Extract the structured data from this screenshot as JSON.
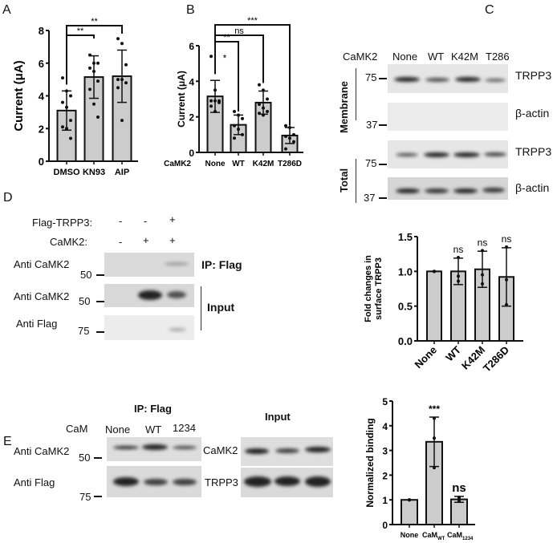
{
  "panels": {
    "a": "A",
    "b": "B",
    "c": "C",
    "d": "D",
    "e": "E"
  },
  "colors": {
    "bar_fill": "#cccccc",
    "bar_edge": "#111111"
  },
  "panel_c_blot": {
    "row_label": "CaMK2",
    "lanes": [
      "None",
      "WT",
      "K42M",
      "T286"
    ],
    "rows": [
      "TRPP3",
      "β-actin",
      "TRPP3",
      "β-actin"
    ],
    "markers": [
      "75",
      "37",
      "75",
      "37"
    ],
    "groups": [
      "Membrane",
      "Total"
    ]
  },
  "panel_d_blot": {
    "conditions": [
      {
        "label": "Flag-TRPP3:",
        "signs": [
          "-",
          "-",
          "+"
        ]
      },
      {
        "label": "CaMK2:",
        "signs": [
          "-",
          "+",
          "+"
        ]
      }
    ],
    "rows": [
      "Anti CaMK2",
      "Anti CaMK2",
      "Anti Flag"
    ],
    "markers": [
      "50",
      "50",
      "75"
    ],
    "ip_label": "IP: Flag",
    "input_label": "Input"
  },
  "panel_e_blot": {
    "ip_label": "IP: Flag",
    "input_label": "Input",
    "row_label": "CaM",
    "lanes": [
      "None",
      "WT",
      "1234"
    ],
    "rows": [
      "Anti CaMK2",
      "Anti Flag"
    ],
    "markers": [
      "50",
      "75"
    ],
    "input_rows": [
      "CaMK2",
      "TRPP3"
    ]
  },
  "chart_data": [
    {
      "id": "A",
      "type": "bar",
      "ylabel": "Current (μA)",
      "ylim": [
        0,
        8
      ],
      "yticks": [
        "0",
        "2",
        "4",
        "6",
        "8"
      ],
      "categories": [
        "DMSO",
        "KN93",
        "AIP"
      ],
      "values": [
        3.1,
        5.15,
        5.2
      ],
      "error": [
        1.2,
        1.3,
        1.6
      ],
      "points": [
        [
          5.1,
          4.3,
          4.0,
          3.6,
          3.3,
          2.5,
          2.1,
          2.0,
          1.4
        ],
        [
          6.5,
          6.0,
          6.0,
          5.7,
          5.5,
          4.9,
          4.4,
          3.5,
          2.7
        ],
        [
          7.5,
          7.2,
          5.9,
          5.0,
          5.0,
          4.8,
          4.5,
          2.5
        ]
      ],
      "significance": [
        {
          "from": "DMSO",
          "to": "KN93",
          "label": "**"
        },
        {
          "from": "DMSO",
          "to": "AIP",
          "label": "**"
        }
      ]
    },
    {
      "id": "B",
      "type": "bar",
      "ylabel": "Current (μA)",
      "xlabel_prefix": "CaMK2",
      "ylim": [
        0,
        6
      ],
      "yticks": [
        "0",
        "2",
        "4",
        "6"
      ],
      "categories": [
        "None",
        "WT",
        "K42M",
        "T286D"
      ],
      "values": [
        3.15,
        1.55,
        2.8,
        0.95
      ],
      "error": [
        0.9,
        0.55,
        0.65,
        0.45
      ],
      "points": [
        [
          5.4,
          3.5,
          2.9,
          2.9,
          2.9,
          2.8,
          2.6,
          2.3
        ],
        [
          2.3,
          2.1,
          1.9,
          1.5,
          1.3,
          1.0,
          0.8
        ],
        [
          3.8,
          3.5,
          3.0,
          2.7,
          2.5,
          2.3,
          2.2,
          2.1
        ],
        [
          1.5,
          1.4,
          1.0,
          0.9,
          0.8,
          0.6,
          0.2
        ]
      ],
      "significance": [
        {
          "from": "None",
          "to": "WT",
          "label": "**"
        },
        {
          "from": "None",
          "to": "K42M",
          "label": "ns"
        },
        {
          "from": "None",
          "to": "T286D",
          "label": "***"
        }
      ],
      "annotations": [
        "*"
      ]
    },
    {
      "id": "C",
      "type": "bar",
      "ylabel": "Fold changes in surface  TRPP3",
      "ylim": [
        0,
        1.5
      ],
      "yticks": [
        "0.0",
        "0.5",
        "1.0",
        "1.5"
      ],
      "categories": [
        "None",
        "WT",
        "K42M",
        "T286D"
      ],
      "values": [
        1.0,
        1.0,
        1.03,
        0.92
      ],
      "error": [
        0,
        0.19,
        0.26,
        0.42
      ],
      "points": [
        [
          1.0,
          1.0,
          1.0
        ],
        [
          1.2,
          0.93,
          0.86
        ],
        [
          1.3,
          0.95,
          0.82
        ],
        [
          1.35,
          0.88,
          0.52
        ]
      ],
      "labels_above": [
        "",
        "ns",
        "ns",
        "ns"
      ]
    },
    {
      "id": "E",
      "type": "bar",
      "ylabel": "Normalized binding",
      "ylim": [
        0,
        5
      ],
      "yticks": [
        "0",
        "1",
        "2",
        "3",
        "4",
        "5"
      ],
      "categories": [
        "None",
        "CaM_WT",
        "CaM_1234"
      ],
      "category_main": [
        "None",
        "CaM",
        "CaM"
      ],
      "category_sub": [
        "",
        "WT",
        "1234"
      ],
      "values": [
        1.0,
        3.35,
        1.02
      ],
      "error": [
        0,
        1.0,
        0.12
      ],
      "points": [
        [
          1.0,
          1.0,
          1.0
        ],
        [
          4.3,
          3.5,
          2.3
        ],
        [
          1.1,
          1.05,
          0.95
        ]
      ],
      "labels_above": [
        "",
        "***",
        "ns"
      ]
    }
  ]
}
